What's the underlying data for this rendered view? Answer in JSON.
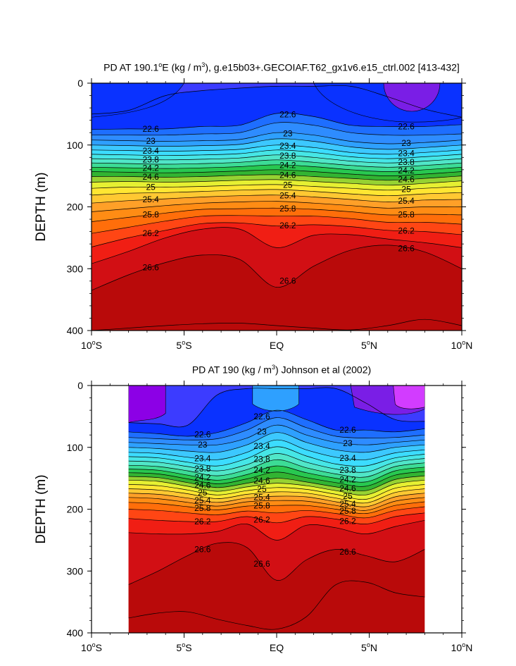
{
  "chart_data": [
    {
      "type": "contour",
      "title": "PD AT 190.1°E (kg / m³), g.e15b03+.GECOIAF.T62_gx1v6.e15_ctrl.002 [413-432]",
      "title_parts": {
        "pre": "PD AT 190.1",
        "deg": "o",
        "mid": "E (kg / m",
        "sup": "3",
        "post": "), g.e15b03+.GECOIAF.T62_gx1v6.e15_ctrl.002 [413-432]"
      },
      "ylabel": "DEPTH (m)",
      "xlim": [
        -10,
        10
      ],
      "ylim": [
        400,
        0
      ],
      "x_ticks": [
        {
          "value": -10,
          "num": "10",
          "deg": "o",
          "hem": "S"
        },
        {
          "value": -5,
          "num": "5",
          "deg": "o",
          "hem": "S"
        },
        {
          "value": 0,
          "num": "EQ",
          "deg": "",
          "hem": ""
        },
        {
          "value": 5,
          "num": "5",
          "deg": "o",
          "hem": "N"
        },
        {
          "value": 10,
          "num": "10",
          "deg": "o",
          "hem": "N"
        }
      ],
      "y_ticks": [
        0,
        100,
        200,
        300,
        400
      ],
      "data_x_range": [
        -10,
        10
      ],
      "isopycnals": [
        {
          "level": 22.4,
          "depths": [
            50,
            44,
            20,
            12,
            8,
            5,
            5,
            5,
            22,
            42,
            55
          ]
        },
        {
          "level": 22.6,
          "depths": [
            75,
            74,
            74,
            70,
            68,
            49,
            54,
            68,
            70,
            70,
            67
          ]
        },
        {
          "level": 22.8,
          "depths": [
            84,
            84,
            84,
            82,
            80,
            64,
            68,
            80,
            84,
            84,
            82
          ]
        },
        {
          "level": 23.0,
          "depths": [
            92,
            93,
            94,
            93,
            91,
            80,
            84,
            94,
            98,
            96,
            92
          ]
        },
        {
          "level": 23.2,
          "depths": [
            100,
            101,
            102,
            101,
            99,
            90,
            94,
            103,
            107,
            104,
            100
          ]
        },
        {
          "level": 23.4,
          "depths": [
            108,
            109,
            110,
            109,
            107,
            100,
            104,
            112,
            115,
            112,
            108
          ]
        },
        {
          "level": 23.6,
          "depths": [
            115,
            116,
            117,
            116,
            114,
            108,
            112,
            119,
            122,
            119,
            115
          ]
        },
        {
          "level": 23.8,
          "depths": [
            122,
            123,
            124,
            123,
            121,
            116,
            120,
            126,
            129,
            126,
            122
          ]
        },
        {
          "level": 24.0,
          "depths": [
            129,
            130,
            131,
            130,
            128,
            124,
            128,
            133,
            136,
            133,
            129
          ]
        },
        {
          "level": 24.2,
          "depths": [
            136,
            137,
            138,
            137,
            135,
            132,
            135,
            140,
            143,
            140,
            136
          ]
        },
        {
          "level": 24.4,
          "depths": [
            143,
            144,
            145,
            144,
            142,
            140,
            143,
            147,
            150,
            147,
            143
          ]
        },
        {
          "level": 24.6,
          "depths": [
            151,
            151,
            152,
            151,
            149,
            148,
            151,
            154,
            157,
            154,
            150
          ]
        },
        {
          "level": 24.8,
          "depths": [
            160,
            159,
            160,
            159,
            157,
            156,
            159,
            162,
            165,
            162,
            158
          ]
        },
        {
          "level": 25.0,
          "depths": [
            170,
            168,
            168,
            167,
            165,
            164,
            167,
            170,
            173,
            170,
            167
          ]
        },
        {
          "level": 25.2,
          "depths": [
            181,
            178,
            177,
            175,
            173,
            172,
            175,
            179,
            182,
            179,
            177
          ]
        },
        {
          "level": 25.4,
          "depths": [
            194,
            190,
            187,
            184,
            182,
            181,
            184,
            188,
            192,
            189,
            188
          ]
        },
        {
          "level": 25.6,
          "depths": [
            208,
            203,
            198,
            194,
            192,
            191,
            194,
            198,
            202,
            200,
            200
          ]
        },
        {
          "level": 25.8,
          "depths": [
            224,
            217,
            210,
            204,
            203,
            202,
            204,
            208,
            213,
            212,
            213
          ]
        },
        {
          "level": 26.0,
          "depths": [
            243,
            233,
            223,
            215,
            214,
            215,
            215,
            219,
            225,
            225,
            228
          ]
        },
        {
          "level": 26.2,
          "depths": [
            265,
            250,
            238,
            227,
            226,
            231,
            229,
            232,
            238,
            240,
            245
          ]
        },
        {
          "level": 26.4,
          "depths": [
            292,
            272,
            250,
            236,
            236,
            266,
            246,
            245,
            252,
            258,
            266
          ]
        },
        {
          "level": 26.6,
          "depths": [
            335,
            310,
            290,
            278,
            285,
            330,
            296,
            270,
            262,
            273,
            300
          ]
        },
        {
          "level": 26.8,
          "depths": [
            400,
            396,
            392,
            389,
            388,
            392,
            396,
            399,
            392,
            382,
            392
          ]
        }
      ],
      "labels": [
        "22.6",
        "23",
        "23.4",
        "23.8",
        "24.2",
        "24.6",
        "25",
        "25.4",
        "25.8",
        "26.2",
        "26.6"
      ]
    },
    {
      "type": "contour",
      "title": "PD AT 190 (kg / m³) Johnson et al (2002)",
      "title_parts": {
        "pre": "PD AT 190 (kg / m",
        "sup": "3",
        "post": ") Johnson et al (2002)"
      },
      "ylabel": "DEPTH (m)",
      "xlim": [
        -10,
        10
      ],
      "ylim": [
        400,
        0
      ],
      "x_ticks": [
        {
          "value": -10,
          "num": "10",
          "deg": "o",
          "hem": "S"
        },
        {
          "value": -5,
          "num": "5",
          "deg": "o",
          "hem": "S"
        },
        {
          "value": 0,
          "num": "EQ",
          "deg": "",
          "hem": ""
        },
        {
          "value": 5,
          "num": "5",
          "deg": "o",
          "hem": "N"
        },
        {
          "value": 10,
          "num": "10",
          "deg": "o",
          "hem": "N"
        }
      ],
      "y_ticks": [
        0,
        100,
        200,
        300,
        400
      ],
      "data_x_range": [
        -8,
        8
      ],
      "isopycnals": [
        {
          "level": 22.4,
          "depths": [
            60,
            62,
            64,
            15,
            5,
            5,
            5,
            5,
            28,
            55,
            58
          ]
        },
        {
          "level": 22.6,
          "depths": [
            75,
            78,
            82,
            76,
            60,
            40,
            55,
            72,
            72,
            75,
            70
          ]
        },
        {
          "level": 22.8,
          "depths": [
            84,
            86,
            88,
            86,
            72,
            52,
            68,
            82,
            85,
            84,
            80
          ]
        },
        {
          "level": 23.0,
          "depths": [
            92,
            94,
            96,
            96,
            85,
            64,
            80,
            92,
            96,
            92,
            88
          ]
        },
        {
          "level": 23.2,
          "depths": [
            100,
            102,
            106,
            108,
            96,
            76,
            92,
            104,
            108,
            100,
            96
          ]
        },
        {
          "level": 23.4,
          "depths": [
            108,
            110,
            116,
            120,
            108,
            88,
            104,
            116,
            120,
            109,
            104
          ]
        },
        {
          "level": 23.6,
          "depths": [
            115,
            117,
            124,
            130,
            118,
            99,
            114,
            127,
            130,
            117,
            111
          ]
        },
        {
          "level": 23.8,
          "depths": [
            122,
            124,
            131,
            138,
            128,
            110,
            124,
            135,
            140,
            124,
            118
          ]
        },
        {
          "level": 24.0,
          "depths": [
            129,
            131,
            138,
            146,
            136,
            120,
            133,
            143,
            148,
            131,
            125
          ]
        },
        {
          "level": 24.2,
          "depths": [
            135,
            137,
            145,
            153,
            144,
            130,
            141,
            150,
            156,
            138,
            132
          ]
        },
        {
          "level": 24.4,
          "depths": [
            141,
            143,
            151,
            159,
            151,
            140,
            149,
            157,
            163,
            145,
            139
          ]
        },
        {
          "level": 24.6,
          "depths": [
            147,
            149,
            157,
            165,
            158,
            150,
            156,
            164,
            170,
            152,
            146
          ]
        },
        {
          "level": 24.8,
          "depths": [
            153,
            155,
            163,
            171,
            164,
            158,
            162,
            170,
            177,
            159,
            153
          ]
        },
        {
          "level": 25.0,
          "depths": [
            160,
            162,
            169,
            177,
            170,
            165,
            168,
            176,
            184,
            166,
            160
          ]
        },
        {
          "level": 25.2,
          "depths": [
            167,
            169,
            175,
            183,
            176,
            172,
            174,
            182,
            190,
            173,
            167
          ]
        },
        {
          "level": 25.4,
          "depths": [
            174,
            176,
            182,
            189,
            182,
            179,
            180,
            188,
            196,
            180,
            174
          ]
        },
        {
          "level": 25.6,
          "depths": [
            181,
            183,
            189,
            195,
            188,
            186,
            187,
            194,
            202,
            187,
            181
          ]
        },
        {
          "level": 25.8,
          "depths": [
            189,
            191,
            196,
            201,
            195,
            194,
            194,
            200,
            207,
            194,
            188
          ]
        },
        {
          "level": 26.0,
          "depths": [
            200,
            202,
            206,
            209,
            203,
            206,
            202,
            207,
            214,
            202,
            196
          ]
        },
        {
          "level": 26.2,
          "depths": [
            215,
            218,
            220,
            220,
            212,
            222,
            212,
            216,
            224,
            212,
            206
          ]
        },
        {
          "level": 26.4,
          "depths": [
            238,
            240,
            240,
            236,
            224,
            250,
            226,
            230,
            240,
            228,
            218
          ]
        },
        {
          "level": 26.6,
          "depths": [
            322,
            300,
            275,
            255,
            262,
            315,
            282,
            265,
            275,
            285,
            265
          ]
        },
        {
          "level": 26.8,
          "depths": [
            376,
            368,
            366,
            378,
            388,
            394,
            374,
            322,
            318,
            335,
            342
          ]
        }
      ],
      "labels": [
        "22.6",
        "23",
        "23.4",
        "23.8",
        "24.2",
        "24.6",
        "25",
        "25.4",
        "25.8",
        "26.2",
        "26.6"
      ]
    }
  ],
  "colors": {
    "fill_bands": [
      "#8C00E6",
      "#3C3CFF",
      "#0A32FF",
      "#1E6EFF",
      "#2E8CFF",
      "#2EA0FF",
      "#3CC8FF",
      "#3CDCFF",
      "#46E6E6",
      "#50E6C8",
      "#3CDC96",
      "#28C850",
      "#32B432",
      "#96D232",
      "#E6F032",
      "#FFE632",
      "#FFC832",
      "#FFA028",
      "#FF8C14",
      "#FF6E0A",
      "#FF4614",
      "#F01E14",
      "#D20F14",
      "#B90A0A"
    ],
    "top_purple": "#7A1EE6",
    "magenta": "#D23CFF"
  }
}
